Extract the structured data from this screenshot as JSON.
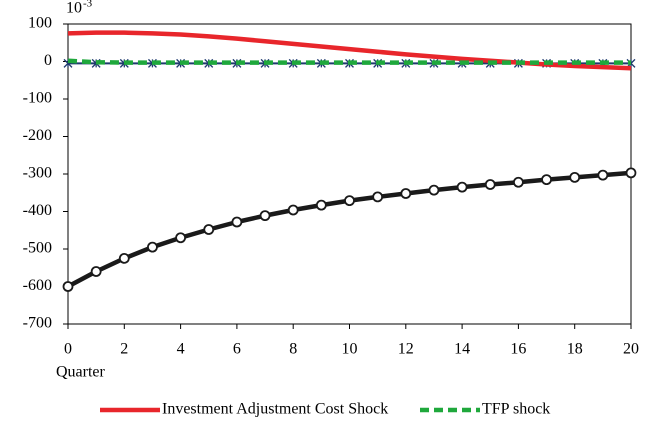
{
  "chart_data": {
    "type": "line",
    "y_scale_label": {
      "base": "10",
      "exponent": "-3"
    },
    "x_label": "Quarter",
    "x": [
      0,
      1,
      2,
      3,
      4,
      5,
      6,
      7,
      8,
      9,
      10,
      11,
      12,
      13,
      14,
      15,
      16,
      17,
      18,
      19,
      20
    ],
    "xlim": [
      0,
      20
    ],
    "xticks": [
      0,
      2,
      4,
      6,
      8,
      10,
      12,
      14,
      16,
      18,
      20
    ],
    "ylim": [
      -700,
      100
    ],
    "yticks": [
      100,
      0,
      -100,
      -200,
      -300,
      -400,
      -500,
      -600,
      -700
    ],
    "grid": false,
    "legend": "bottom",
    "series": [
      {
        "color": "#1a1a1a",
        "marker": "circle",
        "dashed": false,
        "values": [
          -600,
          -560,
          -525,
          -495,
          -470,
          -448,
          -428,
          -411,
          -396,
          -383,
          -371,
          -361,
          -352,
          -343,
          -335,
          -328,
          -322,
          -315,
          -309,
          -303,
          -297
        ]
      },
      {
        "color": "#1f3a6e",
        "marker": "asterisk",
        "dashed": false,
        "values": [
          -5,
          -5,
          -5,
          -5,
          -5,
          -5,
          -5,
          -5,
          -5,
          -5,
          -5,
          -5,
          -5,
          -5,
          -5,
          -5,
          -5,
          -5,
          -5,
          -5,
          -5
        ]
      },
      {
        "name": "Investment Adjustment Cost Shock",
        "color": "#e8262b",
        "marker": "none",
        "dashed": false,
        "values": [
          75,
          77,
          77,
          75,
          72,
          67,
          61,
          54,
          47,
          40,
          33,
          26,
          19,
          13,
          7,
          2,
          -3,
          -8,
          -12,
          -15,
          -18
        ]
      },
      {
        "name": "TFP shock",
        "color": "#1fa83c",
        "marker": "none",
        "dashed": true,
        "values": [
          2,
          -2,
          -3,
          -3,
          -3,
          -3,
          -3,
          -3,
          -3,
          -3,
          -3,
          -3,
          -3,
          -3,
          -3,
          -3,
          -3,
          -3,
          -3,
          -3,
          -3
        ]
      }
    ]
  }
}
